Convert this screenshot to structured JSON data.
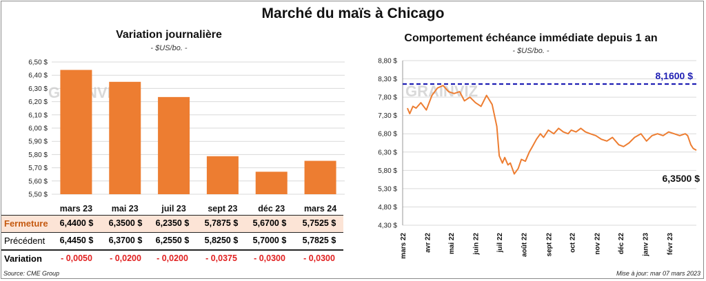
{
  "title": "Marché du maïs à Chicago",
  "source": "Source: CME Group",
  "update": "Mise à jour: mar 07 mars 2023",
  "watermark": "GRAINVIZ",
  "colors": {
    "bar": "#ED7D31",
    "line": "#ED7D31",
    "ref_line": "#1F1FB4",
    "negative": "#E02020",
    "highlight_row": "#FCE4D6"
  },
  "left_chart": {
    "title": "Variation  journalière",
    "unit": "- $US/bo. -",
    "y_ticks": [
      "5,50 $",
      "5,60 $",
      "5,70 $",
      "5,80 $",
      "5,90 $",
      "6,00 $",
      "6,10 $",
      "6,20 $",
      "6,30 $",
      "6,40 $",
      "6,50 $"
    ]
  },
  "table": {
    "rows": [
      {
        "label": "Fermeture",
        "values": [
          "6,4400  $",
          "6,3500  $",
          "6,2350  $",
          "5,7875  $",
          "5,6700  $",
          "5,7525  $"
        ]
      },
      {
        "label": "Précédent",
        "values": [
          "6,4450  $",
          "6,3700  $",
          "6,2550  $",
          "5,8250  $",
          "5,7000  $",
          "5,7825  $"
        ]
      },
      {
        "label": "Variation",
        "values": [
          "- 0,0050",
          "- 0,0200",
          "- 0,0200",
          "- 0,0375",
          "- 0,0300",
          "- 0,0300"
        ]
      }
    ]
  },
  "right_chart": {
    "title": "Comportement  échéance immédiate depuis 1 an",
    "unit": "- $US/bo. -",
    "y_ticks": [
      "4,30 $",
      "4,80 $",
      "5,30 $",
      "5,80 $",
      "6,30 $",
      "6,80 $",
      "7,30 $",
      "7,80 $",
      "8,30 $",
      "8,80 $"
    ],
    "x_ticks": [
      "mars 22",
      "avr 22",
      "mai 22",
      "juin 22",
      "juil 22",
      "août 22",
      "sept 22",
      "oct 22",
      "nov 22",
      "déc 22",
      "janv 23",
      "févr 23"
    ],
    "ref_label": "8,1600 $",
    "last_label": "6,3500 $"
  },
  "chart_data": [
    {
      "type": "bar",
      "title": "Variation  journalière",
      "categories": [
        "mars 23",
        "mai 23",
        "juil 23",
        "sept 23",
        "déc 23",
        "mars 24"
      ],
      "values": [
        6.44,
        6.35,
        6.235,
        5.7875,
        5.67,
        5.7525
      ],
      "ylim": [
        5.5,
        6.5
      ],
      "grid": true
    },
    {
      "type": "line",
      "title": "Comportement  échéance immédiate depuis 1 an",
      "ylim": [
        4.3,
        8.8
      ],
      "grid": true,
      "reference_line": 8.16,
      "x": [
        "2022-03-07",
        "2022-03-10",
        "2022-03-14",
        "2022-03-18",
        "2022-03-24",
        "2022-03-31",
        "2022-04-07",
        "2022-04-14",
        "2022-04-21",
        "2022-04-28",
        "2022-05-05",
        "2022-05-12",
        "2022-05-18",
        "2022-05-25",
        "2022-06-01",
        "2022-06-08",
        "2022-06-15",
        "2022-06-22",
        "2022-06-28",
        "2022-07-01",
        "2022-07-05",
        "2022-07-08",
        "2022-07-12",
        "2022-07-15",
        "2022-07-20",
        "2022-07-25",
        "2022-07-29",
        "2022-08-03",
        "2022-08-08",
        "2022-08-12",
        "2022-08-17",
        "2022-08-22",
        "2022-08-26",
        "2022-09-01",
        "2022-09-08",
        "2022-09-14",
        "2022-09-20",
        "2022-09-26",
        "2022-09-30",
        "2022-10-06",
        "2022-10-12",
        "2022-10-18",
        "2022-10-24",
        "2022-10-31",
        "2022-11-07",
        "2022-11-14",
        "2022-11-21",
        "2022-11-29",
        "2022-12-05",
        "2022-12-12",
        "2022-12-19",
        "2022-12-27",
        "2023-01-03",
        "2023-01-10",
        "2023-01-17",
        "2023-01-24",
        "2023-01-31",
        "2023-02-07",
        "2023-02-14",
        "2023-02-21",
        "2023-02-24",
        "2023-02-28",
        "2023-03-03",
        "2023-03-07"
      ],
      "values": [
        7.5,
        7.35,
        7.55,
        7.5,
        7.65,
        7.45,
        7.85,
        8.05,
        8.12,
        7.95,
        7.9,
        7.95,
        7.7,
        7.8,
        7.65,
        7.55,
        7.85,
        7.6,
        7.0,
        6.2,
        6.0,
        6.15,
        5.95,
        6.0,
        5.7,
        5.85,
        6.1,
        6.05,
        6.3,
        6.45,
        6.65,
        6.8,
        6.7,
        6.9,
        6.8,
        6.95,
        6.85,
        6.8,
        6.9,
        6.85,
        6.95,
        6.85,
        6.8,
        6.75,
        6.65,
        6.6,
        6.7,
        6.5,
        6.45,
        6.55,
        6.7,
        6.8,
        6.6,
        6.75,
        6.8,
        6.75,
        6.85,
        6.8,
        6.75,
        6.8,
        6.75,
        6.5,
        6.4,
        6.35
      ]
    }
  ]
}
